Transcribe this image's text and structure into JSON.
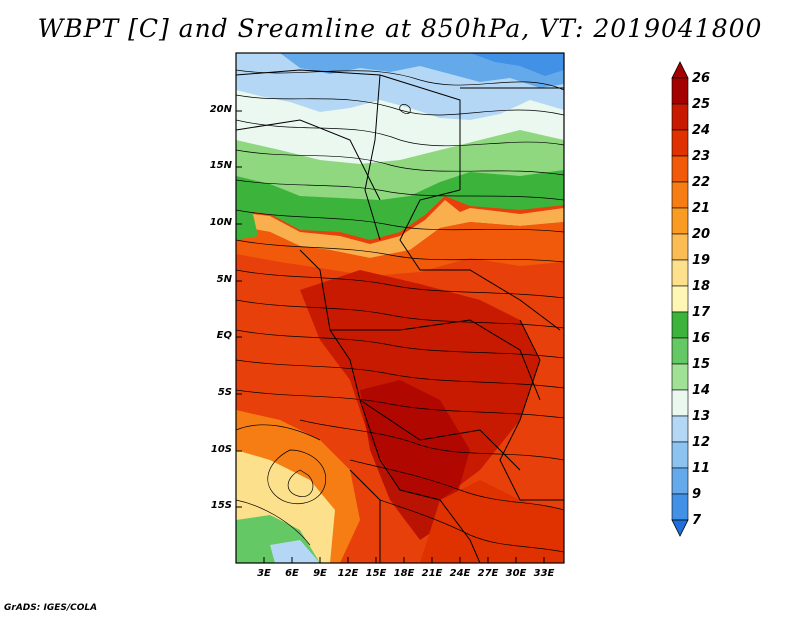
{
  "title": "WBPT [C] and Sreamline at 850hPa, VT: 2019041800",
  "credit": "GrADS: IGES/COLA",
  "lat_labels": [
    "20N",
    "15N",
    "10N",
    "5N",
    "EQ",
    "5S",
    "10S",
    "15S"
  ],
  "lon_labels": [
    "3E",
    "6E",
    "9E",
    "12E",
    "15E",
    "18E",
    "21E",
    "24E",
    "27E",
    "30E",
    "33E"
  ],
  "colorbar": {
    "labels": [
      "26",
      "25",
      "24",
      "23",
      "22",
      "21",
      "20",
      "19",
      "18",
      "17",
      "16",
      "15",
      "14",
      "13",
      "12",
      "11",
      "9",
      "7"
    ],
    "colors": [
      "#a50000",
      "#c81a00",
      "#e03200",
      "#f05a0a",
      "#f57d14",
      "#fa9b23",
      "#fbbb55",
      "#fde08c",
      "#fdf6b4",
      "#3cb43c",
      "#64c864",
      "#a0e196",
      "#eaf8f0",
      "#b4d7f5",
      "#8cc3f0",
      "#64aaeb",
      "#4191e6",
      "#1e6edc"
    ]
  }
}
